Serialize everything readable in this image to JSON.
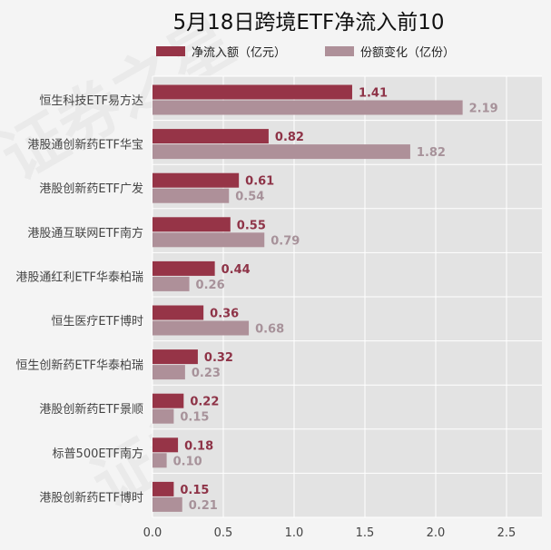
{
  "chart_data": {
    "type": "bar",
    "orientation": "horizontal",
    "title": "5月18日跨境ETF净流入前10",
    "categories": [
      "恒生科技ETF易方达",
      "港股通创新药ETF华宝",
      "港股创新药ETF广发",
      "港股通互联网ETF南方",
      "港股通红利ETF华泰柏瑞",
      "恒生医疗ETF博时",
      "恒生创新药ETF华泰柏瑞",
      "港股创新药ETF景顺",
      "标普500ETF南方",
      "港股创新药ETF博时"
    ],
    "series": [
      {
        "name": "净流入额（亿元）",
        "color": "#963447",
        "values": [
          1.41,
          0.82,
          0.61,
          0.55,
          0.44,
          0.36,
          0.32,
          0.22,
          0.18,
          0.15
        ],
        "labels": [
          "1.41",
          "0.82",
          "0.61",
          "0.55",
          "0.44",
          "0.36",
          "0.32",
          "0.22",
          "0.18",
          "0.15"
        ]
      },
      {
        "name": "份额变化（亿份）",
        "color": "#ae9099",
        "values": [
          2.19,
          1.82,
          0.54,
          0.79,
          0.26,
          0.68,
          0.23,
          0.15,
          0.1,
          0.21
        ],
        "labels": [
          "2.19",
          "1.82",
          "0.54",
          "0.79",
          "0.26",
          "0.68",
          "0.23",
          "0.15",
          "0.10",
          "0.21"
        ]
      }
    ],
    "xlim": [
      0,
      2.75
    ],
    "xticks": [
      "0.0",
      "0.5",
      "1.0",
      "1.5",
      "2.0",
      "2.5"
    ],
    "grid": true,
    "legend": "top"
  },
  "watermark": "证券之星"
}
